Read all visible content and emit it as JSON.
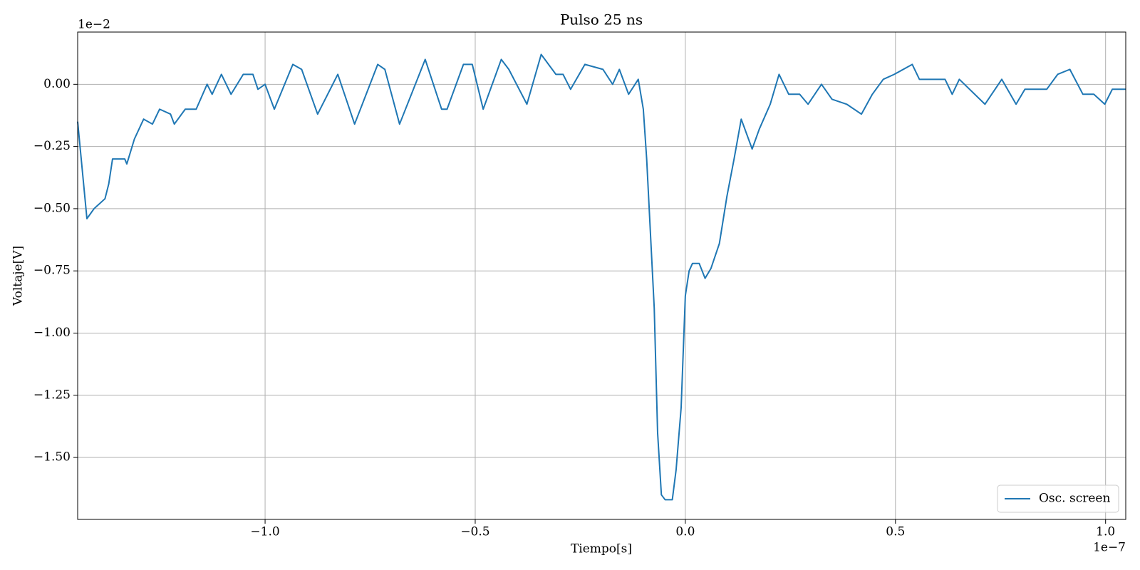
{
  "chart_data": {
    "type": "line",
    "title": "Pulso 25 ns",
    "x_label": "Tiempo[s]",
    "y_label": "Voltaje[V]",
    "x_offset_label": "1e−7",
    "y_offset_label": "1e−2",
    "x": [
      -1.446,
      -1.424,
      -1.407,
      -1.381,
      -1.372,
      -1.363,
      -1.334,
      -1.329,
      -1.311,
      -1.289,
      -1.268,
      -1.251,
      -1.225,
      -1.216,
      -1.19,
      -1.164,
      -1.138,
      -1.126,
      -1.104,
      -1.081,
      -1.052,
      -1.029,
      -1.017,
      -1.0,
      -0.978,
      -0.934,
      -0.913,
      -0.875,
      -0.827,
      -0.787,
      -0.732,
      -0.715,
      -0.68,
      -0.619,
      -0.58,
      -0.567,
      -0.528,
      -0.507,
      -0.481,
      -0.438,
      -0.42,
      -0.377,
      -0.343,
      -0.308,
      -0.291,
      -0.273,
      -0.239,
      -0.196,
      -0.173,
      -0.157,
      -0.135,
      -0.112,
      -0.1,
      -0.092,
      -0.074,
      -0.066,
      -0.057,
      -0.048,
      -0.031,
      -0.022,
      -0.01,
      0.0,
      0.009,
      0.017,
      0.033,
      0.047,
      0.061,
      0.081,
      0.099,
      0.116,
      0.133,
      0.159,
      0.176,
      0.202,
      0.223,
      0.246,
      0.272,
      0.292,
      0.324,
      0.349,
      0.384,
      0.419,
      0.445,
      0.471,
      0.497,
      0.54,
      0.557,
      0.618,
      0.635,
      0.652,
      0.713,
      0.753,
      0.787,
      0.808,
      0.86,
      0.886,
      0.915,
      0.946,
      0.972,
      0.998,
      1.016,
      1.048
    ],
    "series": [
      {
        "name": "Osc. screen",
        "color": "#1f77b4",
        "values": [
          -0.15,
          -0.54,
          -0.5,
          -0.46,
          -0.4,
          -0.3,
          -0.3,
          -0.32,
          -0.22,
          -0.14,
          -0.16,
          -0.1,
          -0.12,
          -0.16,
          -0.1,
          -0.1,
          0.0,
          -0.04,
          0.04,
          -0.04,
          0.04,
          0.04,
          -0.02,
          0.0,
          -0.1,
          0.08,
          0.06,
          -0.12,
          0.04,
          -0.16,
          0.08,
          0.06,
          -0.16,
          0.1,
          -0.1,
          -0.1,
          0.08,
          0.08,
          -0.1,
          0.1,
          0.06,
          -0.08,
          0.12,
          0.04,
          0.04,
          -0.02,
          0.08,
          0.06,
          0.0,
          0.06,
          -0.04,
          0.02,
          -0.1,
          -0.3,
          -0.9,
          -1.4,
          -1.65,
          -1.67,
          -1.67,
          -1.55,
          -1.3,
          -0.85,
          -0.75,
          -0.72,
          -0.72,
          -0.78,
          -0.74,
          -0.64,
          -0.45,
          -0.3,
          -0.14,
          -0.26,
          -0.18,
          -0.08,
          0.04,
          -0.04,
          -0.04,
          -0.08,
          0.0,
          -0.06,
          -0.08,
          -0.12,
          -0.04,
          0.02,
          0.04,
          0.08,
          0.02,
          0.02,
          -0.04,
          0.02,
          -0.08,
          0.02,
          -0.08,
          -0.02,
          -0.02,
          0.04,
          0.06,
          -0.04,
          -0.04,
          -0.08,
          -0.02,
          -0.02
        ]
      }
    ],
    "xlim": [
      -1.446,
      1.048
    ],
    "ylim": [
      -1.749,
      0.21
    ],
    "xticks": [
      {
        "value": -1,
        "label": "−1.0"
      },
      {
        "value": -0.5,
        "label": "−0.5"
      },
      {
        "value": 0,
        "label": "0.0"
      },
      {
        "value": 0.5,
        "label": "0.5"
      },
      {
        "value": 1,
        "label": "1.0"
      }
    ],
    "yticks": [
      {
        "value": 0,
        "label": "0.00"
      },
      {
        "value": -0.25,
        "label": "−0.25"
      },
      {
        "value": -0.5,
        "label": "−0.50"
      },
      {
        "value": -0.75,
        "label": "−0.75"
      },
      {
        "value": -1,
        "label": "−1.00"
      },
      {
        "value": -1.25,
        "label": "−1.25"
      },
      {
        "value": -1.5,
        "label": "−1.50"
      }
    ],
    "grid": true,
    "legend": "lower right"
  }
}
